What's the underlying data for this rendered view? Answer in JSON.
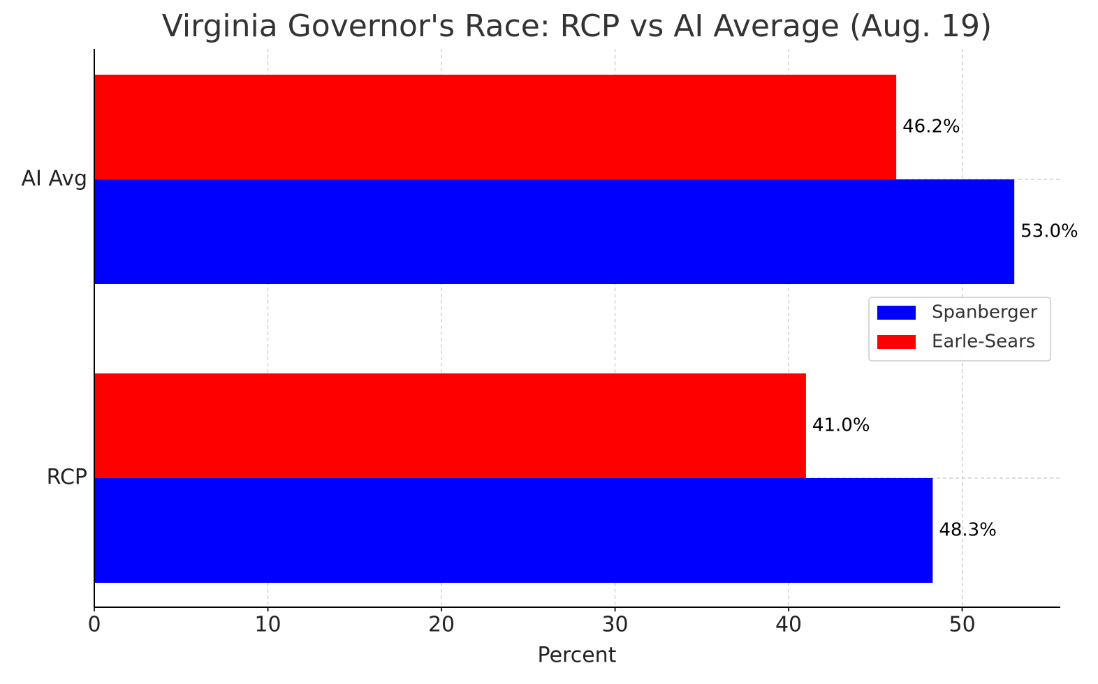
{
  "chart_data": {
    "type": "barh",
    "title": "Virginia Governor's Race: RCP vs AI Average (Aug. 19)",
    "xlabel": "Percent",
    "categories": [
      "RCP",
      "AI Avg"
    ],
    "series": [
      {
        "name": "Spanberger",
        "color": "#0000ff",
        "values": [
          48.3,
          53.0
        ],
        "value_labels": [
          "48.3%",
          "53.0%"
        ]
      },
      {
        "name": "Earle-Sears",
        "color": "#ff0000",
        "values": [
          41.0,
          46.2
        ],
        "value_labels": [
          "41.0%",
          "46.2%"
        ]
      }
    ],
    "xlim": [
      0,
      55.65
    ],
    "xticks": [
      0,
      10,
      20,
      30,
      40,
      50
    ],
    "grid": true,
    "legend": "center right"
  }
}
